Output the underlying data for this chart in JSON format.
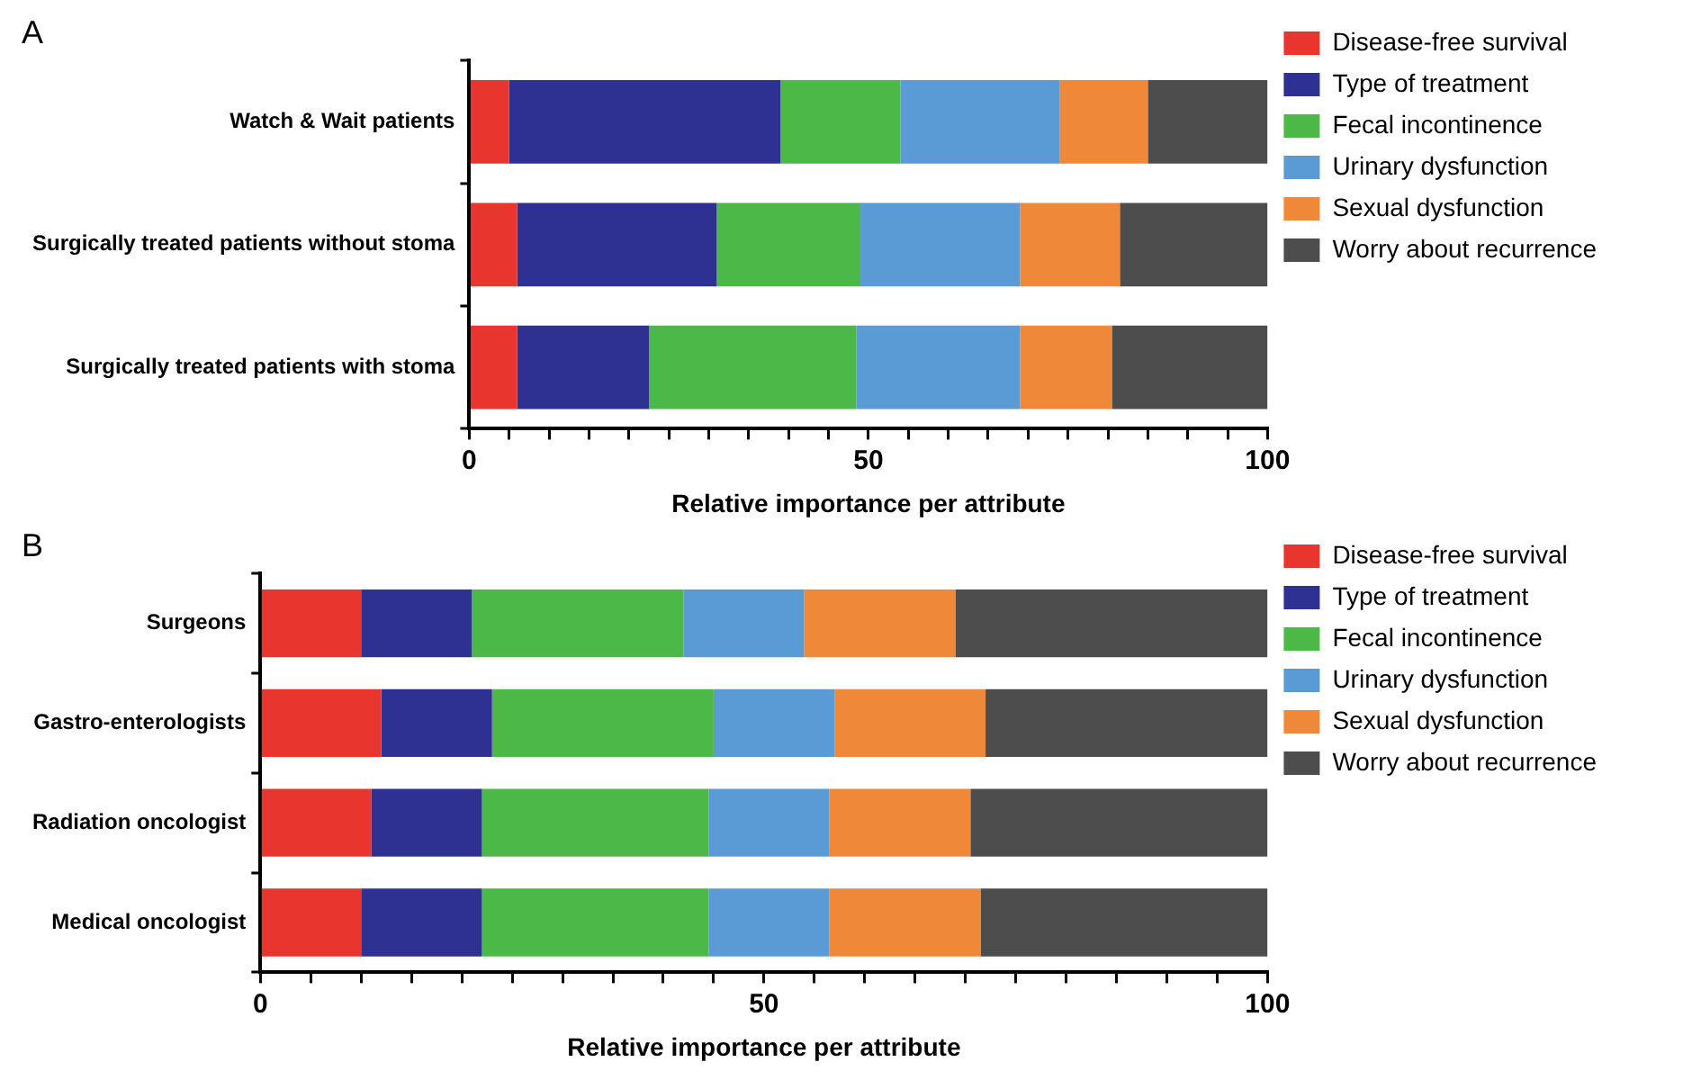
{
  "chart_data": [
    {
      "type": "bar",
      "title": "A",
      "orientation": "horizontal",
      "stacked": true,
      "xlabel": "Relative importance per attribute",
      "legend": "right",
      "grid": false,
      "categories": [
        "Watch & Wait patients",
        "Surgically treated patients without stoma",
        "Surgically treated patients with stoma"
      ],
      "xlim": [
        0,
        100
      ],
      "xticks": [
        0,
        {
          "value": 5,
          "label": null
        },
        {
          "value": 10,
          "label": null
        },
        {
          "value": 15,
          "label": null
        },
        {
          "value": 20,
          "label": null
        },
        {
          "value": 25,
          "label": null
        },
        {
          "value": 30,
          "label": null
        },
        {
          "value": 35,
          "label": null
        },
        {
          "value": 40,
          "label": null
        },
        {
          "value": 45,
          "label": null
        },
        50,
        {
          "value": 55,
          "label": null
        },
        {
          "value": 60,
          "label": null
        },
        {
          "value": 65,
          "label": null
        },
        {
          "value": 70,
          "label": null
        },
        {
          "value": 75,
          "label": null
        },
        {
          "value": 80,
          "label": null
        },
        {
          "value": 85,
          "label": null
        },
        {
          "value": 90,
          "label": null
        },
        {
          "value": 95,
          "label": null
        },
        100
      ],
      "series": [
        {
          "name": "Disease-free survival",
          "color": "#e8352e",
          "values": [
            5,
            6,
            6
          ]
        },
        {
          "name": "Type of treatment",
          "color": "#2e3192",
          "values": [
            34,
            25,
            16.5
          ]
        },
        {
          "name": "Fecal incontinence",
          "color": "#4cb848",
          "values": [
            15,
            18,
            26
          ]
        },
        {
          "name": "Urinary dysfunction",
          "color": "#5b9bd5",
          "values": [
            20,
            20,
            20.5
          ]
        },
        {
          "name": "Sexual dysfunction",
          "color": "#f0883a",
          "values": [
            11,
            12.5,
            11.5
          ]
        },
        {
          "name": "Worry about recurrence",
          "color": "#4d4d4d",
          "values": [
            15,
            18.5,
            19.5
          ]
        }
      ]
    },
    {
      "type": "bar",
      "title": "B",
      "orientation": "horizontal",
      "stacked": true,
      "xlabel": "Relative importance per attribute",
      "legend": "right",
      "grid": false,
      "categories": [
        "Surgeons",
        "Gastro-enterologists",
        "Radiation oncologist",
        "Medical oncologist"
      ],
      "xlim": [
        0,
        100
      ],
      "xticks": [
        0,
        {
          "value": 5,
          "label": null
        },
        {
          "value": 10,
          "label": null
        },
        {
          "value": 15,
          "label": null
        },
        {
          "value": 20,
          "label": null
        },
        {
          "value": 25,
          "label": null
        },
        {
          "value": 30,
          "label": null
        },
        {
          "value": 35,
          "label": null
        },
        {
          "value": 40,
          "label": null
        },
        {
          "value": 45,
          "label": null
        },
        50,
        {
          "value": 55,
          "label": null
        },
        {
          "value": 60,
          "label": null
        },
        {
          "value": 65,
          "label": null
        },
        {
          "value": 70,
          "label": null
        },
        {
          "value": 75,
          "label": null
        },
        {
          "value": 80,
          "label": null
        },
        {
          "value": 85,
          "label": null
        },
        {
          "value": 90,
          "label": null
        },
        {
          "value": 95,
          "label": null
        },
        100
      ],
      "series": [
        {
          "name": "Disease-free survival",
          "color": "#e8352e",
          "values": [
            10,
            12,
            11,
            10
          ]
        },
        {
          "name": "Type of treatment",
          "color": "#2e3192",
          "values": [
            11,
            11,
            11,
            12
          ]
        },
        {
          "name": "Fecal incontinence",
          "color": "#4cb848",
          "values": [
            21,
            22,
            22.5,
            22.5
          ]
        },
        {
          "name": "Urinary dysfunction",
          "color": "#5b9bd5",
          "values": [
            12,
            12,
            12,
            12
          ]
        },
        {
          "name": "Sexual dysfunction",
          "color": "#f0883a",
          "values": [
            15,
            15,
            14,
            15
          ]
        },
        {
          "name": "Worry about recurrence",
          "color": "#4d4d4d",
          "values": [
            31,
            28,
            29.5,
            28.5
          ]
        }
      ]
    }
  ]
}
